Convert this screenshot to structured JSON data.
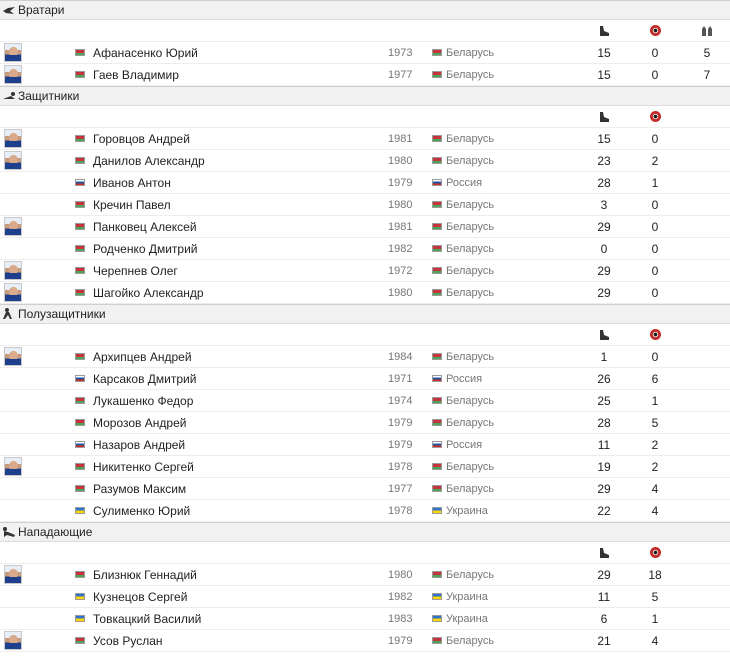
{
  "icons": {
    "games": "boot-icon",
    "goals": "ball-icon",
    "extra": "glove-icon"
  },
  "sections": [
    {
      "key": "gk",
      "title": "Вратари",
      "icon": "goalkeeper-icon",
      "has_extra": true,
      "players": [
        {
          "name": "Афанасенко Юрий",
          "year": "1973",
          "country": "Беларусь",
          "flag": "by",
          "games": "15",
          "goals": "0",
          "extra": "5",
          "photo": true
        },
        {
          "name": "Гаев Владимир",
          "year": "1977",
          "country": "Беларусь",
          "flag": "by",
          "games": "15",
          "goals": "0",
          "extra": "7",
          "photo": true
        }
      ]
    },
    {
      "key": "df",
      "title": "Защитники",
      "icon": "defender-icon",
      "has_extra": false,
      "players": [
        {
          "name": "Горовцов Андрей",
          "year": "1981",
          "country": "Беларусь",
          "flag": "by",
          "games": "15",
          "goals": "0",
          "photo": true
        },
        {
          "name": "Данилов Александр",
          "year": "1980",
          "country": "Беларусь",
          "flag": "by",
          "games": "23",
          "goals": "2",
          "photo": true
        },
        {
          "name": "Иванов Антон",
          "year": "1979",
          "country": "Россия",
          "flag": "ru",
          "games": "28",
          "goals": "1",
          "photo": false
        },
        {
          "name": "Кречин Павел",
          "year": "1980",
          "country": "Беларусь",
          "flag": "by",
          "games": "3",
          "goals": "0",
          "photo": false
        },
        {
          "name": "Панковец Алексей",
          "year": "1981",
          "country": "Беларусь",
          "flag": "by",
          "games": "29",
          "goals": "0",
          "photo": true
        },
        {
          "name": "Родченко Дмитрий",
          "year": "1982",
          "country": "Беларусь",
          "flag": "by",
          "games": "0",
          "goals": "0",
          "photo": false
        },
        {
          "name": "Черепнев Олег",
          "year": "1972",
          "country": "Беларусь",
          "flag": "by",
          "games": "29",
          "goals": "0",
          "photo": true
        },
        {
          "name": "Шагойко Александр",
          "year": "1980",
          "country": "Беларусь",
          "flag": "by",
          "games": "29",
          "goals": "0",
          "photo": true
        }
      ]
    },
    {
      "key": "mf",
      "title": "Полузащитники",
      "icon": "midfielder-icon",
      "has_extra": false,
      "players": [
        {
          "name": "Архипцев Андрей",
          "year": "1984",
          "country": "Беларусь",
          "flag": "by",
          "games": "1",
          "goals": "0",
          "photo": true
        },
        {
          "name": "Карсаков Дмитрий",
          "year": "1971",
          "country": "Россия",
          "flag": "ru",
          "games": "26",
          "goals": "6",
          "photo": false
        },
        {
          "name": "Лукашенко Федор",
          "year": "1974",
          "country": "Беларусь",
          "flag": "by",
          "games": "25",
          "goals": "1",
          "photo": false
        },
        {
          "name": "Морозов Андрей",
          "year": "1979",
          "country": "Беларусь",
          "flag": "by",
          "games": "28",
          "goals": "5",
          "photo": false
        },
        {
          "name": "Назаров Андрей",
          "year": "1979",
          "country": "Россия",
          "flag": "ru",
          "games": "11",
          "goals": "2",
          "photo": false
        },
        {
          "name": "Никитенко Сергей",
          "year": "1978",
          "country": "Беларусь",
          "flag": "by",
          "games": "19",
          "goals": "2",
          "photo": true
        },
        {
          "name": "Разумов Максим",
          "year": "1977",
          "country": "Беларусь",
          "flag": "by",
          "games": "29",
          "goals": "4",
          "photo": false
        },
        {
          "name": "Сулименко Юрий",
          "year": "1978",
          "country": "Украина",
          "flag": "ua",
          "games": "22",
          "goals": "4",
          "photo": false
        }
      ]
    },
    {
      "key": "fw",
      "title": "Нападающие",
      "icon": "forward-icon",
      "has_extra": false,
      "players": [
        {
          "name": "Близнюк Геннадий",
          "year": "1980",
          "country": "Беларусь",
          "flag": "by",
          "games": "29",
          "goals": "18",
          "photo": true
        },
        {
          "name": "Кузнецов Сергей",
          "year": "1982",
          "country": "Украина",
          "flag": "ua",
          "games": "11",
          "goals": "5",
          "photo": false
        },
        {
          "name": "Товкацкий Василий",
          "year": "1983",
          "country": "Украина",
          "flag": "ua",
          "games": "6",
          "goals": "1",
          "photo": false
        },
        {
          "name": "Усов Руслан",
          "year": "1979",
          "country": "Беларусь",
          "flag": "by",
          "games": "21",
          "goals": "4",
          "photo": true
        }
      ]
    }
  ]
}
